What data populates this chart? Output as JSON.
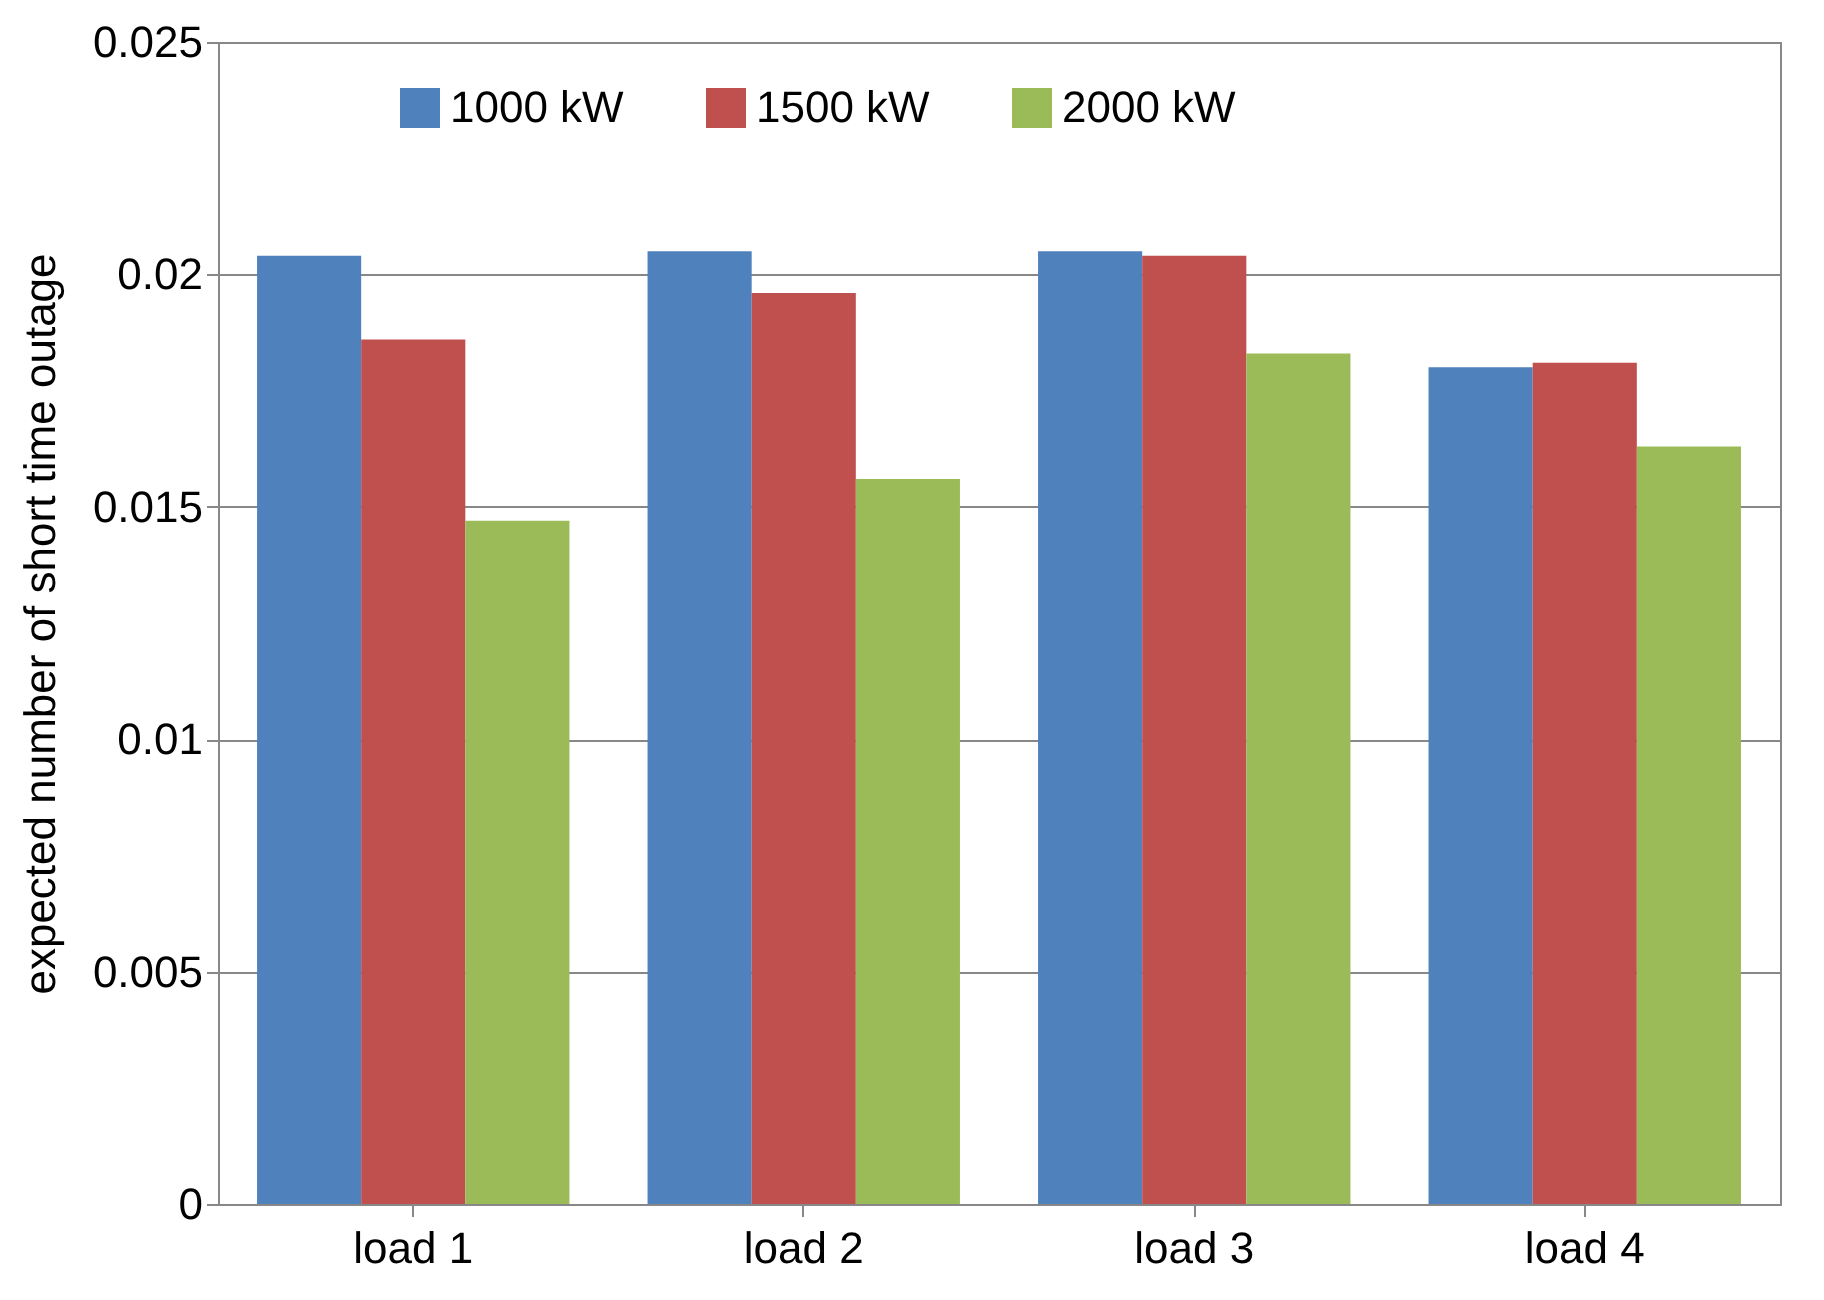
{
  "chart_data": {
    "type": "bar",
    "ylabel": "expected number of short time outage",
    "categories": [
      "load 1",
      "load 2",
      "load 3",
      "load 4"
    ],
    "series": [
      {
        "name": "1000 kW",
        "color": "#4f81bd",
        "values": [
          0.0204,
          0.0205,
          0.0205,
          0.018
        ]
      },
      {
        "name": "1500 kW",
        "color": "#c0504d",
        "values": [
          0.0186,
          0.0196,
          0.0204,
          0.0181
        ]
      },
      {
        "name": "2000 kW",
        "color": "#9bbb59",
        "values": [
          0.0147,
          0.0156,
          0.0183,
          0.0163
        ]
      }
    ],
    "ylim": [
      0,
      0.025
    ],
    "yticks": [
      0,
      0.005,
      0.01,
      0.015,
      0.02,
      0.025
    ],
    "grid": "y",
    "legend": "top"
  }
}
